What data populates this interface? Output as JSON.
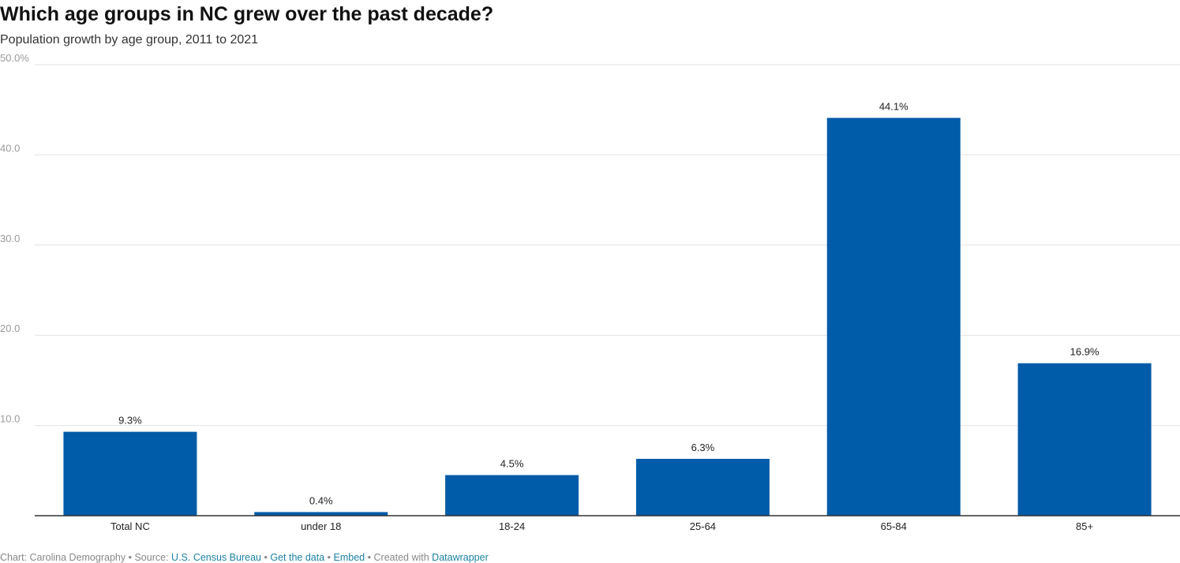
{
  "title": "Which age groups in NC grew over the past decade?",
  "subtitle": "Population growth by age group, 2011 to 2021",
  "chart_data": {
    "type": "bar",
    "categories": [
      "Total NC",
      "under 18",
      "18-24",
      "25-64",
      "65-84",
      "85+"
    ],
    "values": [
      9.3,
      0.4,
      4.5,
      6.3,
      44.1,
      16.9
    ],
    "value_labels": [
      "9.3%",
      "0.4%",
      "4.5%",
      "6.3%",
      "44.1%",
      "16.9%"
    ],
    "yticks": [
      10,
      20,
      30,
      40,
      50
    ],
    "ytick_labels": [
      "10.0",
      "20.0",
      "30.0",
      "40.0",
      "50.0%"
    ],
    "ylim": [
      0,
      50
    ],
    "grid": true,
    "bar_color": "#005ba8"
  },
  "footer": {
    "chart_credit": "Chart: Carolina Demography",
    "source_prefix": "Source:",
    "source_link": "U.S. Census Bureau",
    "get_data": "Get the data",
    "embed": "Embed",
    "created_with": "Created with",
    "datawrapper": "Datawrapper",
    "separator": "•"
  }
}
